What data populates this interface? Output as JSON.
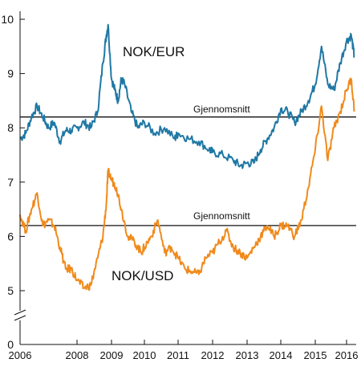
{
  "chart_data": {
    "type": "line",
    "x_ticks": [
      "2006",
      "2008",
      "2009",
      "2010",
      "2011",
      "2012",
      "2013",
      "2014",
      "2015",
      "2016"
    ],
    "y_ticks": [
      "0",
      "5",
      "6",
      "7",
      "8",
      "9",
      "10"
    ],
    "axis_break": "y between 0 and 5",
    "ylim": [
      5,
      10
    ],
    "xlim": [
      2006.0,
      2016.3
    ],
    "grid": false,
    "series": [
      {
        "name": "NOK/EUR",
        "color": "#1f78a4",
        "x": [
          2006.0,
          2006.2,
          2006.4,
          2006.6,
          2006.8,
          2007.0,
          2007.2,
          2007.4,
          2007.6,
          2007.8,
          2008.0,
          2008.2,
          2008.4,
          2008.6,
          2008.75,
          2008.85,
          2008.9,
          2009.0,
          2009.1,
          2009.2,
          2009.3,
          2009.4,
          2009.6,
          2009.8,
          2010.0,
          2010.3,
          2010.6,
          2010.9,
          2011.0,
          2011.3,
          2011.6,
          2011.9,
          2012.0,
          2012.3,
          2012.6,
          2012.8,
          2013.0,
          2013.2,
          2013.4,
          2013.6,
          2013.8,
          2014.0,
          2014.2,
          2014.4,
          2014.6,
          2014.8,
          2015.0,
          2015.2,
          2015.4,
          2015.6,
          2015.8,
          2016.0,
          2016.15,
          2016.25
        ],
        "y": [
          7.8,
          7.9,
          8.2,
          8.4,
          8.2,
          8.0,
          8.1,
          7.75,
          7.95,
          7.95,
          8.0,
          8.1,
          8.0,
          8.3,
          9.2,
          9.7,
          9.9,
          8.9,
          8.7,
          8.5,
          8.9,
          8.8,
          8.3,
          8.0,
          8.1,
          7.9,
          8.0,
          7.8,
          7.9,
          7.8,
          7.75,
          7.6,
          7.55,
          7.5,
          7.4,
          7.3,
          7.35,
          7.35,
          7.6,
          7.8,
          8.0,
          8.35,
          8.3,
          8.1,
          8.3,
          8.5,
          8.8,
          9.5,
          8.8,
          8.7,
          9.2,
          9.6,
          9.7,
          9.3
        ]
      },
      {
        "name": "NOK/USD",
        "color": "#f08a1c",
        "x": [
          2006.0,
          2006.2,
          2006.4,
          2006.6,
          2006.8,
          2007.0,
          2007.2,
          2007.4,
          2007.6,
          2007.8,
          2008.0,
          2008.2,
          2008.4,
          2008.6,
          2008.75,
          2008.85,
          2008.9,
          2009.0,
          2009.15,
          2009.3,
          2009.5,
          2009.7,
          2009.9,
          2010.0,
          2010.2,
          2010.4,
          2010.6,
          2010.8,
          2011.0,
          2011.2,
          2011.4,
          2011.6,
          2011.8,
          2012.0,
          2012.2,
          2012.4,
          2012.6,
          2012.8,
          2013.0,
          2013.2,
          2013.4,
          2013.6,
          2013.8,
          2014.0,
          2014.2,
          2014.4,
          2014.6,
          2014.8,
          2015.0,
          2015.2,
          2015.4,
          2015.6,
          2015.8,
          2016.0,
          2016.15,
          2016.25
        ],
        "y": [
          6.4,
          6.1,
          6.5,
          6.8,
          6.2,
          6.3,
          6.2,
          5.8,
          5.4,
          5.4,
          5.2,
          5.05,
          5.1,
          5.6,
          6.0,
          6.6,
          7.2,
          7.05,
          6.9,
          6.5,
          6.0,
          5.9,
          5.7,
          5.8,
          6.0,
          6.3,
          5.7,
          5.8,
          5.6,
          5.4,
          5.35,
          5.3,
          5.6,
          5.7,
          5.9,
          6.1,
          5.8,
          5.7,
          5.6,
          5.8,
          6.0,
          6.2,
          6.0,
          6.2,
          6.2,
          6.0,
          6.3,
          6.9,
          7.6,
          8.4,
          7.4,
          8.0,
          8.3,
          8.7,
          8.9,
          8.3
        ]
      }
    ],
    "annotations": {
      "eur_label": "NOK/EUR",
      "usd_label": "NOK/USD",
      "avg_label_top": "Gjennomsnitt",
      "avg_label_bottom": "Gjennomsnitt"
    },
    "averages": [
      {
        "label": "Gjennomsnitt",
        "value": 8.2
      },
      {
        "label": "Gjennomsnitt",
        "value": 6.2
      }
    ]
  }
}
